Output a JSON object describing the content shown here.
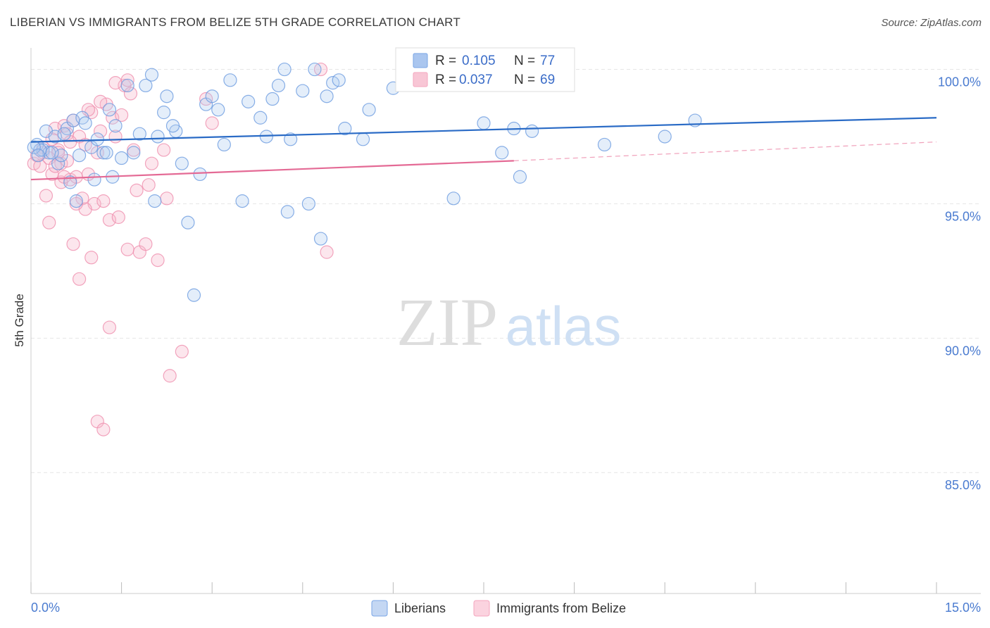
{
  "chart_data": {
    "type": "scatter",
    "title": "LIBERIAN VS IMMIGRANTS FROM BELIZE 5TH GRADE CORRELATION CHART",
    "source": "Source: ZipAtlas.com",
    "xlabel": "",
    "ylabel": "5th Grade",
    "xlim": [
      0,
      15
    ],
    "ylim": [
      80.5,
      100.8
    ],
    "x_tick_labels": [
      "0.0%",
      "15.0%"
    ],
    "y_ticks": [
      85,
      90,
      95,
      100
    ],
    "y_tick_labels": [
      "85.0%",
      "90.0%",
      "95.0%",
      "100.0%"
    ],
    "watermark": {
      "zip": "ZIP",
      "atlas": "atlas"
    },
    "legend": {
      "r_label": "R =",
      "n_label": "N =",
      "entries": [
        {
          "name": "Liberians",
          "r": "0.105",
          "n": "77",
          "color": "#7aa6e6",
          "line": "#2a6bc6"
        },
        {
          "name": "Immigrants from Belize",
          "r": "0.037",
          "n": "69",
          "color": "#f4a6be",
          "line": "#e46a95"
        }
      ]
    },
    "series": [
      {
        "name": "Liberians",
        "trend": {
          "x0": 0.0,
          "y0": 97.3,
          "x1": 15.0,
          "y1": 98.2
        },
        "points": [
          [
            0.1,
            97.2
          ],
          [
            0.2,
            97.0
          ],
          [
            0.25,
            97.7
          ],
          [
            0.3,
            96.9
          ],
          [
            0.4,
            97.5
          ],
          [
            0.45,
            96.5
          ],
          [
            0.5,
            96.8
          ],
          [
            0.6,
            97.8
          ],
          [
            0.65,
            95.8
          ],
          [
            0.7,
            98.1
          ],
          [
            0.75,
            95.1
          ],
          [
            0.8,
            96.8
          ],
          [
            0.85,
            98.2
          ],
          [
            1.0,
            97.1
          ],
          [
            1.05,
            95.9
          ],
          [
            1.2,
            96.9
          ],
          [
            1.3,
            98.5
          ],
          [
            1.4,
            97.9
          ],
          [
            1.5,
            96.7
          ],
          [
            1.6,
            99.4
          ],
          [
            1.8,
            97.6
          ],
          [
            1.9,
            99.4
          ],
          [
            2.0,
            99.8
          ],
          [
            2.05,
            95.1
          ],
          [
            2.2,
            98.4
          ],
          [
            2.25,
            99.0
          ],
          [
            2.4,
            97.7
          ],
          [
            2.5,
            96.5
          ],
          [
            2.6,
            94.3
          ],
          [
            2.7,
            91.6
          ],
          [
            2.8,
            96.1
          ],
          [
            2.9,
            98.7
          ],
          [
            3.0,
            99.0
          ],
          [
            3.1,
            98.5
          ],
          [
            3.2,
            97.2
          ],
          [
            3.3,
            99.6
          ],
          [
            3.5,
            95.1
          ],
          [
            3.6,
            98.8
          ],
          [
            3.8,
            98.2
          ],
          [
            3.9,
            97.5
          ],
          [
            4.0,
            98.9
          ],
          [
            4.1,
            99.4
          ],
          [
            4.2,
            100.0
          ],
          [
            4.25,
            94.7
          ],
          [
            4.3,
            97.4
          ],
          [
            4.5,
            99.2
          ],
          [
            4.6,
            95.0
          ],
          [
            4.7,
            100.0
          ],
          [
            4.8,
            93.7
          ],
          [
            4.9,
            99.0
          ],
          [
            5.0,
            99.5
          ],
          [
            5.1,
            99.6
          ],
          [
            5.2,
            97.8
          ],
          [
            5.5,
            97.4
          ],
          [
            5.6,
            98.5
          ],
          [
            6.0,
            99.3
          ],
          [
            7.0,
            95.2
          ],
          [
            7.5,
            98.0
          ],
          [
            7.8,
            96.9
          ],
          [
            8.0,
            97.8
          ],
          [
            8.1,
            96.0
          ],
          [
            8.3,
            97.7
          ],
          [
            9.5,
            97.2
          ],
          [
            10.5,
            97.5
          ],
          [
            11.0,
            98.1
          ],
          [
            0.15,
            97.0
          ],
          [
            0.35,
            96.9
          ],
          [
            0.55,
            97.6
          ],
          [
            0.9,
            98.0
          ],
          [
            1.1,
            97.4
          ],
          [
            1.25,
            96.9
          ],
          [
            1.35,
            96.0
          ],
          [
            1.7,
            96.9
          ],
          [
            2.1,
            97.5
          ],
          [
            2.35,
            97.9
          ],
          [
            0.05,
            97.1
          ],
          [
            0.12,
            96.8
          ]
        ]
      },
      {
        "name": "Immigrants from Belize",
        "trend": {
          "x0": 0.0,
          "y0": 95.9,
          "x1": 8.0,
          "y1": 96.6,
          "dash_x1": 15.0,
          "dash_y1": 97.3
        },
        "points": [
          [
            0.05,
            96.5
          ],
          [
            0.1,
            96.8
          ],
          [
            0.15,
            96.4
          ],
          [
            0.2,
            96.9
          ],
          [
            0.25,
            95.3
          ],
          [
            0.3,
            96.7
          ],
          [
            0.35,
            96.1
          ],
          [
            0.4,
            97.8
          ],
          [
            0.45,
            97.0
          ],
          [
            0.5,
            96.5
          ],
          [
            0.55,
            97.9
          ],
          [
            0.6,
            97.6
          ],
          [
            0.65,
            95.9
          ],
          [
            0.7,
            98.1
          ],
          [
            0.75,
            96.0
          ],
          [
            0.8,
            97.5
          ],
          [
            0.85,
            95.2
          ],
          [
            0.9,
            97.2
          ],
          [
            0.95,
            96.1
          ],
          [
            1.0,
            98.4
          ],
          [
            1.05,
            95.0
          ],
          [
            1.1,
            96.9
          ],
          [
            1.15,
            97.7
          ],
          [
            1.2,
            95.1
          ],
          [
            1.25,
            98.7
          ],
          [
            1.3,
            94.4
          ],
          [
            1.35,
            98.2
          ],
          [
            1.4,
            97.5
          ],
          [
            1.45,
            94.5
          ],
          [
            1.5,
            98.3
          ],
          [
            1.55,
            99.4
          ],
          [
            1.6,
            93.3
          ],
          [
            1.65,
            99.1
          ],
          [
            1.7,
            97.0
          ],
          [
            1.75,
            95.5
          ],
          [
            1.8,
            93.2
          ],
          [
            1.9,
            93.5
          ],
          [
            1.95,
            95.7
          ],
          [
            2.0,
            96.5
          ],
          [
            2.1,
            92.9
          ],
          [
            2.2,
            97.0
          ],
          [
            2.25,
            95.2
          ],
          [
            2.3,
            88.6
          ],
          [
            2.5,
            89.5
          ],
          [
            2.9,
            98.9
          ],
          [
            3.0,
            98.0
          ],
          [
            4.8,
            100.0
          ],
          [
            4.9,
            93.2
          ],
          [
            0.7,
            93.5
          ],
          [
            0.8,
            92.2
          ],
          [
            0.9,
            94.8
          ],
          [
            1.0,
            93.0
          ],
          [
            1.1,
            86.9
          ],
          [
            1.2,
            86.6
          ],
          [
            1.3,
            90.4
          ],
          [
            1.4,
            99.5
          ],
          [
            1.6,
            99.6
          ],
          [
            0.3,
            94.3
          ],
          [
            0.4,
            96.4
          ],
          [
            0.2,
            97.1
          ],
          [
            0.6,
            96.6
          ],
          [
            0.5,
            95.8
          ],
          [
            0.95,
            98.5
          ],
          [
            1.15,
            98.8
          ],
          [
            0.35,
            97.4
          ],
          [
            0.45,
            96.9
          ],
          [
            0.55,
            96.0
          ],
          [
            0.65,
            97.3
          ],
          [
            0.75,
            95.0
          ]
        ]
      }
    ]
  }
}
